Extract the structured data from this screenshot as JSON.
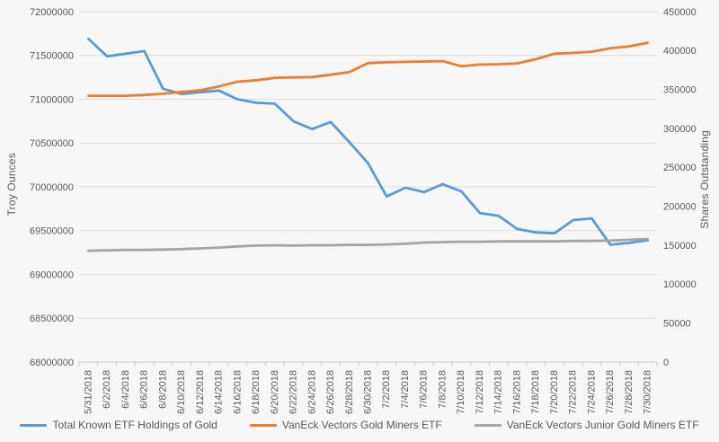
{
  "colors": {
    "text": "#595959",
    "gridline": "#DCDCDC",
    "axis_line": "#C9C9C9",
    "background": "#F7F7F7",
    "series_blue": "#5B9BD5",
    "series_orange": "#ED7D31",
    "series_gray": "#A5A5A5"
  },
  "chart_data": {
    "type": "line",
    "title": "",
    "grid": true,
    "legend_position": "bottom",
    "categories": [
      "5/31/2018",
      "6/2/2018",
      "6/4/2018",
      "6/6/2018",
      "6/8/2018",
      "6/10/2018",
      "6/12/2018",
      "6/14/2018",
      "6/16/2018",
      "6/18/2018",
      "6/20/2018",
      "6/22/2018",
      "6/24/2018",
      "6/26/2018",
      "6/28/2018",
      "6/30/2018",
      "7/2/2018",
      "7/4/2018",
      "7/6/2018",
      "7/8/2018",
      "7/10/2018",
      "7/12/2018",
      "7/14/2018",
      "7/16/2018",
      "7/18/2018",
      "7/20/2018",
      "7/22/2018",
      "7/24/2018",
      "7/26/2018",
      "7/28/2018",
      "7/30/2018"
    ],
    "left_axis": {
      "title": "Troy Ounces",
      "min": 68000000,
      "max": 72000000,
      "tick_step": 500000,
      "tick_labels": [
        "72000000",
        "71500000",
        "71000000",
        "70500000",
        "70000000",
        "69500000",
        "69000000",
        "68500000",
        "68000000"
      ]
    },
    "right_axis": {
      "title": "Shares Outstanding",
      "min": 0,
      "max": 450000,
      "tick_step": 50000,
      "tick_labels": [
        "450000",
        "400000",
        "350000",
        "300000",
        "250000",
        "200000",
        "150000",
        "100000",
        "50000",
        "0"
      ]
    },
    "series": [
      {
        "name": "Total Known ETF Holdings of Gold",
        "axis": "left",
        "color": "#5B9BD5",
        "values": [
          71690000,
          71490000,
          71520000,
          71550000,
          71120000,
          71060000,
          71080000,
          71100000,
          71000000,
          70960000,
          70950000,
          70750000,
          70660000,
          70740000,
          70510000,
          70270000,
          69890000,
          69990000,
          69940000,
          70030000,
          69950000,
          69700000,
          69670000,
          69520000,
          69480000,
          69470000,
          69620000,
          69640000,
          69340000,
          69360000,
          69390000
        ]
      },
      {
        "name": "VanEck Vectors Gold Miners ETF",
        "axis": "right",
        "color": "#ED7D31",
        "values": [
          342000,
          342000,
          342000,
          343000,
          344500,
          347000,
          349000,
          354000,
          360000,
          362000,
          365000,
          365500,
          366000,
          369000,
          372500,
          384000,
          385000,
          385500,
          386000,
          386500,
          380000,
          382000,
          382500,
          383500,
          389000,
          396000,
          397000,
          398500,
          403000,
          405500,
          410000
        ]
      },
      {
        "name": "VanEck Vectors Junior Gold Miners ETF",
        "axis": "right",
        "color": "#A5A5A5",
        "values": [
          143000,
          143500,
          144000,
          144000,
          144500,
          145000,
          146000,
          147000,
          148500,
          149500,
          150000,
          149500,
          150000,
          150000,
          150500,
          150500,
          151000,
          152000,
          153500,
          154000,
          154500,
          154500,
          155000,
          155000,
          155000,
          155000,
          155500,
          155500,
          156000,
          157000,
          158000
        ]
      }
    ]
  }
}
